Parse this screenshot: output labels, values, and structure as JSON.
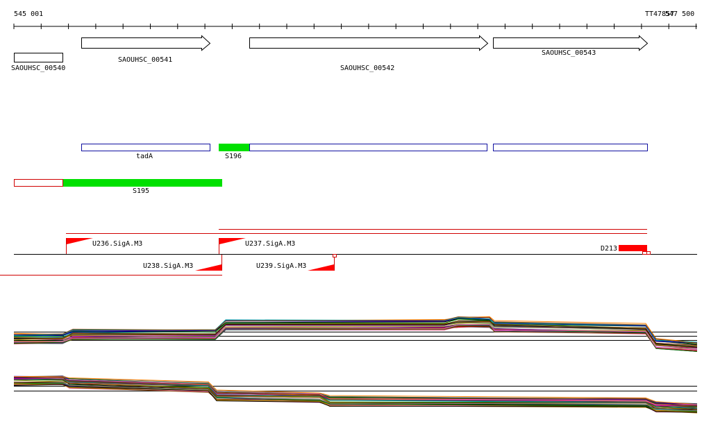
{
  "ruler": {
    "start_label": "545 001",
    "end_label": "547 500",
    "overlap_label": "TT47857"
  },
  "genes": [
    {
      "label": "SAOUHSC_00540"
    },
    {
      "label": "SAOUHSC_00541"
    },
    {
      "label": "SAOUHSC_00542"
    },
    {
      "label": "SAOUHSC_00543"
    }
  ],
  "blue_segments": [
    {
      "label": "tadA"
    },
    {
      "label": "S196"
    }
  ],
  "red_segments": [
    {
      "label": "S195"
    }
  ],
  "promoters": [
    {
      "label": "U236.SigA.M3"
    },
    {
      "label": "U237.SigA.M3"
    },
    {
      "label": "U238.SigA.M3"
    },
    {
      "label": "U239.SigA.M3"
    }
  ],
  "terminator": {
    "label": "D213"
  },
  "colors": {
    "green": "#00e000",
    "red": "#ff0000",
    "blue": "#1010a0",
    "black": "#000000"
  }
}
